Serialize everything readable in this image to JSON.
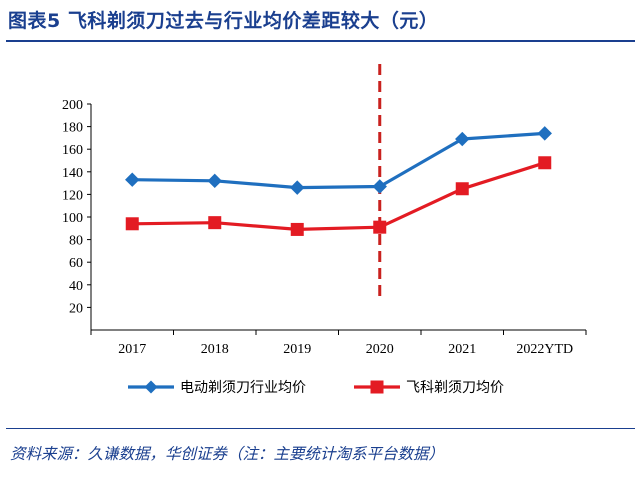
{
  "title": "图表5  飞科剃须刀过去与行业均价差距较大（元）",
  "source": "资料来源：久谦数据，华创证券（注：主要统计淘系平台数据）",
  "colors": {
    "title": "#1a3f8f",
    "industry_series": "#1f6fbf",
    "flyco_series": "#e31b23",
    "divider": "#c9211e"
  },
  "chart_data": {
    "type": "line",
    "title": "",
    "xlabel": "",
    "ylabel": "",
    "categories": [
      "2017",
      "2018",
      "2019",
      "2020",
      "2021",
      "2022YTD"
    ],
    "ylim": [
      0,
      200
    ],
    "yticks": [
      20,
      40,
      60,
      80,
      100,
      120,
      140,
      160,
      180,
      200
    ],
    "grid": false,
    "divider_after_category": "2020",
    "legend_position": "bottom",
    "series": [
      {
        "name": "电动剃须刀行业均价",
        "marker": "diamond",
        "values": [
          133,
          132,
          126,
          127,
          169,
          174
        ]
      },
      {
        "name": "飞科剃须刀均价",
        "marker": "square",
        "values": [
          94,
          95,
          89,
          91,
          125,
          148
        ]
      }
    ]
  }
}
